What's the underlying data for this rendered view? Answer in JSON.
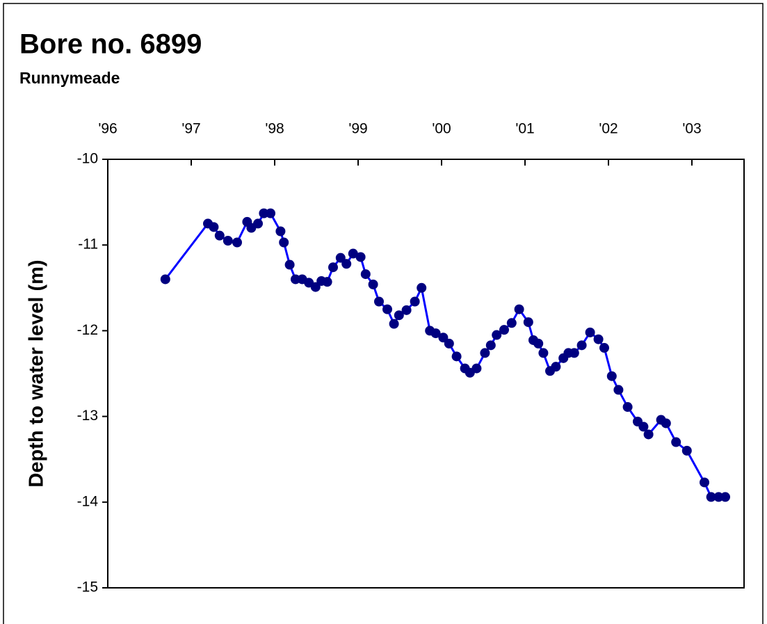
{
  "chart_data": {
    "type": "line",
    "title": "Bore no. 6899",
    "subtitle": "Runnymeade",
    "y_label": "Depth to water level  (m)",
    "x": [
      1996.69,
      1997.2,
      1997.27,
      1997.34,
      1997.44,
      1997.55,
      1997.67,
      1997.72,
      1997.8,
      1997.87,
      1997.95,
      1998.07,
      1998.11,
      1998.18,
      1998.25,
      1998.33,
      1998.41,
      1998.49,
      1998.56,
      1998.63,
      1998.7,
      1998.79,
      1998.86,
      1998.94,
      1999.03,
      1999.09,
      1999.18,
      1999.25,
      1999.35,
      1999.43,
      1999.49,
      1999.58,
      1999.68,
      1999.76,
      1999.86,
      1999.93,
      2000.02,
      2000.09,
      2000.18,
      2000.28,
      2000.34,
      2000.42,
      2000.52,
      2000.59,
      2000.66,
      2000.75,
      2000.84,
      2000.93,
      2001.04,
      2001.1,
      2001.16,
      2001.22,
      2001.3,
      2001.37,
      2001.46,
      2001.52,
      2001.59,
      2001.68,
      2001.78,
      2001.88,
      2001.95,
      2002.04,
      2002.12,
      2002.23,
      2002.35,
      2002.42,
      2002.48,
      2002.63,
      2002.69,
      2002.81,
      2002.94,
      2003.15,
      2003.23,
      2003.32,
      2003.4
    ],
    "series": [
      {
        "name": "Depth to water level",
        "line_color": "#0000ff",
        "marker_color": "#000080",
        "values": [
          -11.4,
          -10.75,
          -10.79,
          -10.89,
          -10.95,
          -10.97,
          -10.73,
          -10.8,
          -10.75,
          -10.63,
          -10.63,
          -10.84,
          -10.97,
          -11.23,
          -11.4,
          -11.4,
          -11.44,
          -11.49,
          -11.42,
          -11.43,
          -11.26,
          -11.15,
          -11.22,
          -11.1,
          -11.14,
          -11.34,
          -11.46,
          -11.66,
          -11.75,
          -11.92,
          -11.82,
          -11.76,
          -11.66,
          -11.5,
          -12.0,
          -12.03,
          -12.08,
          -12.15,
          -12.3,
          -12.44,
          -12.49,
          -12.44,
          -12.26,
          -12.17,
          -12.05,
          -11.99,
          -11.91,
          -11.75,
          -11.9,
          -12.11,
          -12.15,
          -12.26,
          -12.47,
          -12.42,
          -12.32,
          -12.26,
          -12.26,
          -12.17,
          -12.02,
          -12.1,
          -12.2,
          -12.53,
          -12.69,
          -12.89,
          -13.06,
          -13.12,
          -13.21,
          -13.04,
          -13.08,
          -13.3,
          -13.4,
          -13.77,
          -13.94,
          -13.94,
          -13.94
        ]
      }
    ],
    "xlim": [
      1996,
      2003.625
    ],
    "xticks": [
      {
        "value": 1996,
        "label": "'96"
      },
      {
        "value": 1997,
        "label": "'97"
      },
      {
        "value": 1998,
        "label": "'98"
      },
      {
        "value": 1999,
        "label": "'99"
      },
      {
        "value": 2000,
        "label": "'00"
      },
      {
        "value": 2001,
        "label": "'01"
      },
      {
        "value": 2002,
        "label": "'02"
      },
      {
        "value": 2003,
        "label": "'03"
      }
    ],
    "ylim": [
      -15,
      -10
    ],
    "yticks": [
      -15,
      -14,
      -13,
      -12,
      -11,
      -10
    ],
    "grid": false
  }
}
